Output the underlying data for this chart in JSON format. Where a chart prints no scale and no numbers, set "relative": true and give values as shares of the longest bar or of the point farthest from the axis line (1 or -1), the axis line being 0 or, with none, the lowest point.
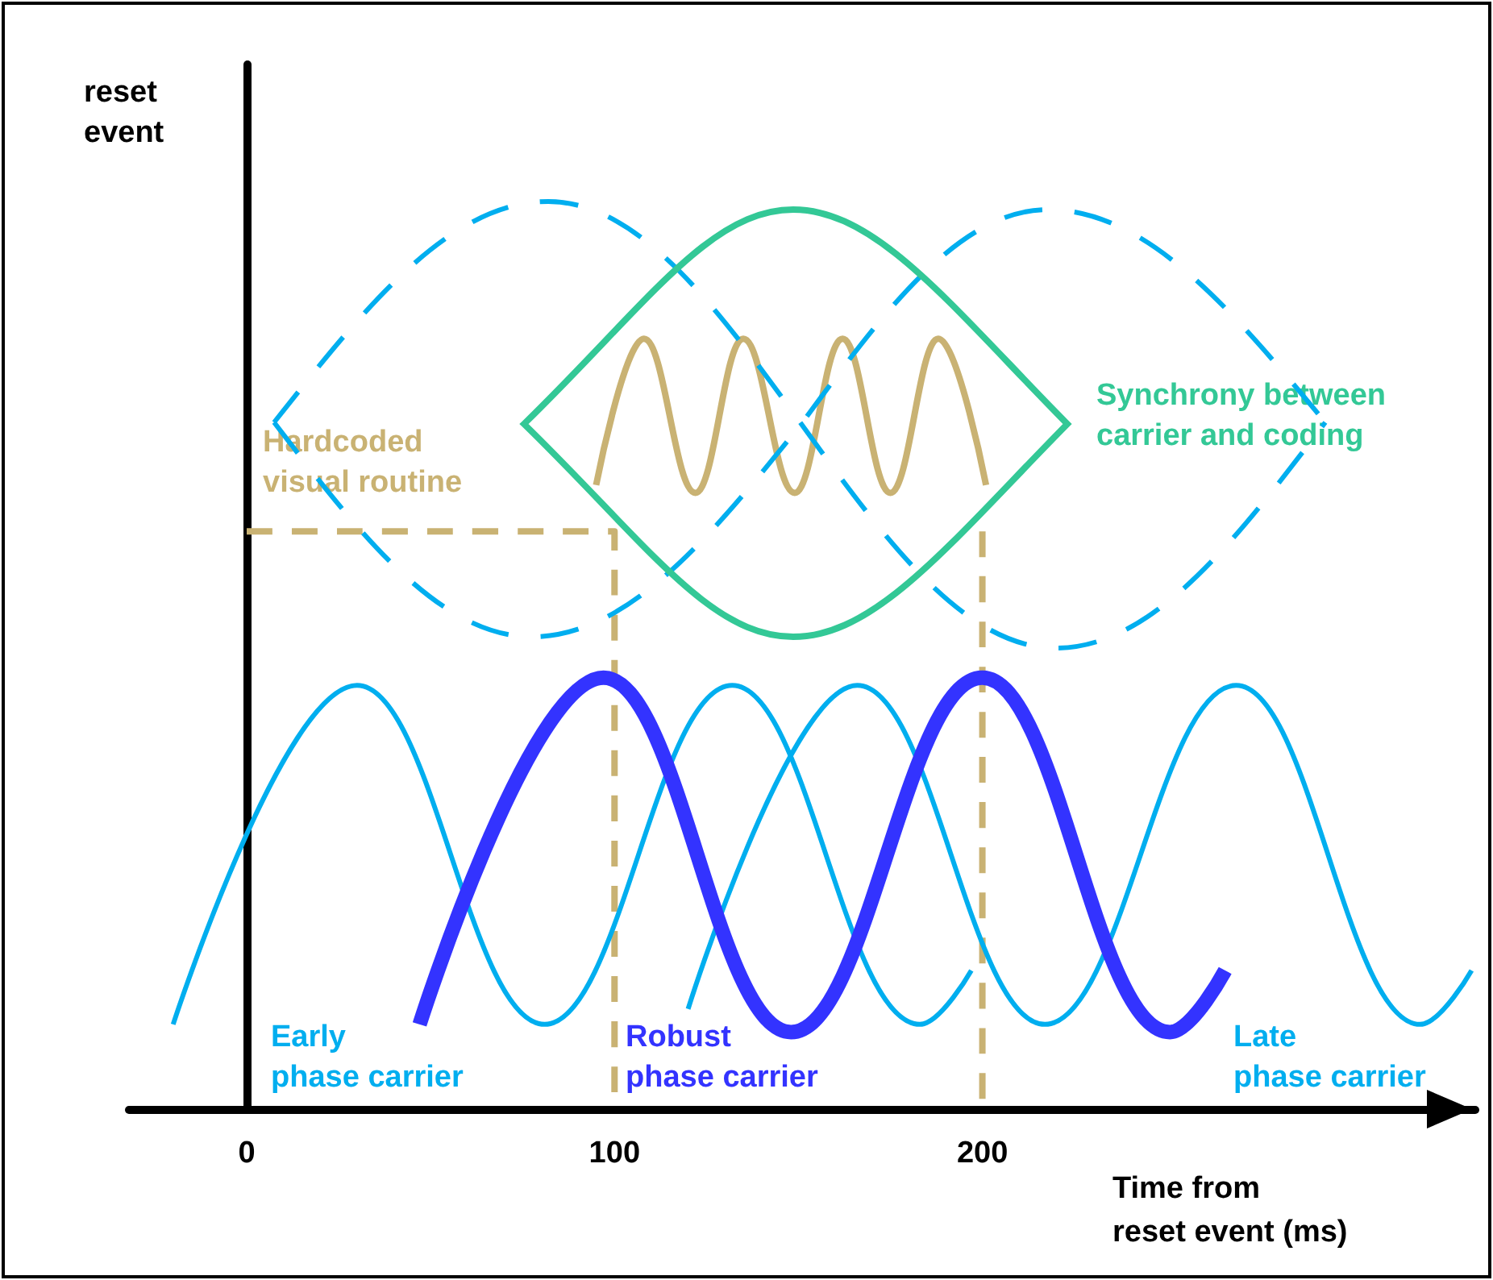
{
  "chart_data": {
    "type": "line",
    "relative": true,
    "xlabel": "Time from reset event (ms)",
    "xlim": [
      -32,
      334
    ],
    "xticks": [
      0,
      100,
      200
    ],
    "marker": "none",
    "series": [
      {
        "color": "#c9b273",
        "line_style": "solid",
        "x": [
          95,
          108,
          122,
          135,
          149,
          162,
          175,
          188,
          201
        ],
        "values": [
          0.81,
          1.0,
          0.8,
          1.0,
          0.8,
          1.0,
          0.8,
          1.0,
          0.81
        ]
      },
      {
        "color": "#c9b273",
        "line_style": "dashed",
        "x": [
          0,
          100,
          100
        ],
        "values": [
          0.75,
          0.75,
          0
        ]
      },
      {
        "color": "#c9b273",
        "line_style": "dashed",
        "x": [
          200,
          200
        ],
        "values": [
          0.75,
          0
        ]
      },
      {
        "color": "#00aeef",
        "line_style": "solid",
        "x": [
          -20,
          30,
          81,
          132,
          183,
          197
        ],
        "values": [
          0.11,
          0.55,
          0.11,
          0.55,
          0.11,
          0.18
        ]
      },
      {
        "color": "#00aeef",
        "line_style": "solid",
        "x": [
          120,
          166,
          217,
          269,
          319,
          333
        ],
        "values": [
          0.13,
          0.55,
          0.11,
          0.55,
          0.11,
          0.18
        ]
      },
      {
        "color": "#3333ff",
        "line_style": "solid",
        "x": [
          47,
          97,
          148,
          200,
          251,
          266
        ],
        "values": [
          0.11,
          0.56,
          0.1,
          0.56,
          0.1,
          0.18
        ]
      }
    ],
    "annotations": [
      "Hardcoded visual routine",
      "Synchrony between carrier and coding",
      "Early phase carrier",
      "Robust phase carrier",
      "Late phase carrier",
      "reset event"
    ]
  }
}
